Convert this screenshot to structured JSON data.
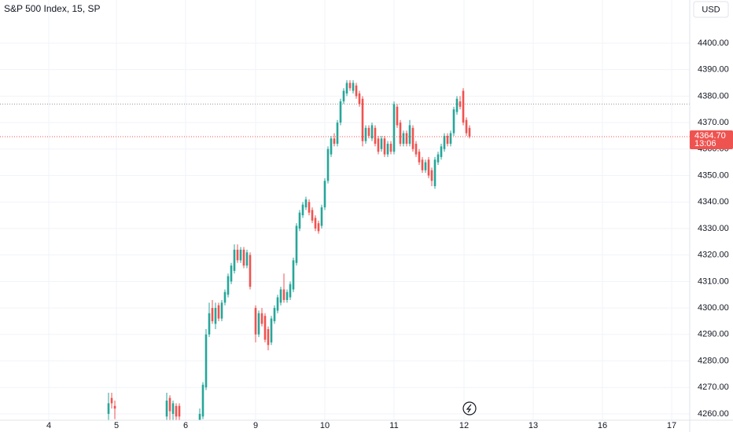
{
  "chart_data": {
    "type": "candlestick",
    "title": "S&P 500 Index, 15, SP",
    "currency": "USD",
    "up_color": "#26a69a",
    "down_color": "#ef5350",
    "x": [
      34.5,
      35.5,
      36.5,
      53,
      54,
      55,
      56,
      57,
      63.5,
      64.5,
      65.5,
      66.5,
      67.5,
      68.5,
      69.5,
      70.5,
      71.5,
      72.5,
      73.5,
      74.5,
      75.5,
      76.5,
      77.5,
      78.5,
      79.5,
      81.25,
      82.25,
      83.25,
      84.25,
      85.25,
      86.25,
      87.25,
      88.25,
      89.25,
      90.25,
      91.25,
      92.25,
      93.25,
      94.25,
      95.25,
      96.25,
      97.25,
      98.25,
      99.25,
      100.25,
      101.25,
      102.25,
      103.25,
      104.25,
      105.25,
      106.25,
      107.25,
      108.25,
      109.25,
      110.25,
      111.25,
      112.25,
      113.25,
      114.25,
      115.25,
      116.25,
      117.25,
      118.25,
      119.25,
      120.25,
      121.25,
      122.25,
      123.25,
      124.25,
      125.25,
      126.25,
      127.25,
      128.25,
      129.25,
      130.25,
      131.25,
      132.25,
      133.25,
      134.25,
      135.25,
      136.25,
      137.25,
      138.25,
      139.25,
      140.25,
      141.25,
      142.25,
      143.25,
      144.25,
      145.25,
      146.25,
      147.25,
      148.25,
      149.25
    ],
    "open": [
      4260,
      4266,
      4263,
      4259,
      4266,
      4260,
      4263,
      4263,
      4255,
      4259,
      4270,
      4290,
      4300,
      4294,
      4301,
      4296,
      4302,
      4305,
      4310,
      4314,
      4322,
      4318,
      4322,
      4316,
      4320,
      4300,
      4290,
      4298,
      4297,
      4292,
      4287,
      4295,
      4299,
      4302,
      4307,
      4303,
      4304,
      4307,
      4317,
      4330,
      4335,
      4338,
      4340,
      4337,
      4334,
      4332,
      4331,
      4338,
      4348,
      4358,
      4364,
      4362,
      4370,
      4378,
      4381,
      4385,
      4382,
      4384,
      4381,
      4379,
      4363,
      4368,
      4364,
      4368,
      4364,
      4360,
      4364,
      4358,
      4362,
      4359,
      4376,
      4370,
      4362,
      4366,
      4362,
      4368,
      4362,
      4359,
      4356,
      4352,
      4356,
      4352,
      4346,
      4355,
      4357,
      4360,
      4365,
      4362,
      4366,
      4374,
      4378,
      4382,
      4371,
      4368
    ],
    "high": [
      4268,
      4268,
      4265,
      4268,
      4267,
      4265,
      4264,
      4264,
      4262,
      4272,
      4292,
      4302,
      4303,
      4302,
      4302,
      4303,
      4307,
      4313,
      4317,
      4324,
      4324,
      4323,
      4323,
      4322,
      4321,
      4301,
      4299,
      4300,
      4298,
      4293,
      4297,
      4301,
      4305,
      4308,
      4313,
      4307,
      4310,
      4319,
      4332,
      4337,
      4340,
      4342,
      4341,
      4338,
      4335,
      4333,
      4339,
      4349,
      4361,
      4365,
      4366,
      4371,
      4379,
      4383,
      4386,
      4386,
      4386,
      4385,
      4382,
      4380,
      4369,
      4369,
      4370,
      4369,
      4365,
      4365,
      4365,
      4363,
      4363,
      4378,
      4377,
      4371,
      4367,
      4367,
      4371,
      4369,
      4363,
      4360,
      4357,
      4356,
      4357,
      4353,
      4357,
      4359,
      4362,
      4366,
      4366,
      4367,
      4376,
      4380,
      4380,
      4383,
      4372,
      4369
    ],
    "low": [
      4256,
      4262,
      4258,
      4256,
      4257,
      4256,
      4256,
      4256,
      4254,
      4258,
      4269,
      4289,
      4294,
      4292,
      4295,
      4295,
      4301,
      4304,
      4309,
      4313,
      4317,
      4317,
      4315,
      4315,
      4307,
      4287,
      4289,
      4293,
      4287,
      4284,
      4286,
      4294,
      4298,
      4301,
      4302,
      4302,
      4303,
      4306,
      4316,
      4329,
      4334,
      4337,
      4335,
      4332,
      4329,
      4328,
      4330,
      4337,
      4347,
      4357,
      4361,
      4361,
      4369,
      4377,
      4380,
      4382,
      4381,
      4379,
      4376,
      4361,
      4362,
      4364,
      4363,
      4361,
      4358,
      4359,
      4357,
      4357,
      4358,
      4358,
      4368,
      4361,
      4361,
      4361,
      4361,
      4359,
      4357,
      4354,
      4351,
      4351,
      4349,
      4346,
      4345,
      4354,
      4356,
      4359,
      4361,
      4361,
      4365,
      4373,
      4375,
      4369,
      4365,
      4364
    ],
    "close": [
      4264,
      4264,
      4262,
      4265,
      4261,
      4264,
      4259,
      4259,
      4260,
      4271,
      4290,
      4298,
      4295,
      4300,
      4296,
      4302,
      4306,
      4312,
      4316,
      4322,
      4318,
      4322,
      4316,
      4321,
      4308,
      4290,
      4298,
      4294,
      4288,
      4286,
      4296,
      4300,
      4304,
      4307,
      4303,
      4306,
      4309,
      4318,
      4331,
      4336,
      4339,
      4341,
      4336,
      4333,
      4330,
      4329,
      4338,
      4348,
      4360,
      4364,
      4362,
      4370,
      4378,
      4382,
      4385,
      4383,
      4385,
      4380,
      4377,
      4363,
      4368,
      4365,
      4369,
      4362,
      4359,
      4364,
      4358,
      4362,
      4359,
      4377,
      4369,
      4362,
      4366,
      4362,
      4369,
      4360,
      4358,
      4355,
      4352,
      4355,
      4350,
      4348,
      4356,
      4358,
      4361,
      4365,
      4362,
      4366,
      4375,
      4379,
      4376,
      4370,
      4366,
      4364.7
    ],
    "last_price": {
      "value": 4364.7,
      "label": "4364.70"
    },
    "countdown": "13:06",
    "ref_line": 4377,
    "xlim": [
      0,
      219.25
    ],
    "ylim": [
      4257.6,
      4416.3
    ],
    "xticks": [
      {
        "value": 15.5,
        "label": "4"
      },
      {
        "value": 37,
        "label": "5"
      },
      {
        "value": 59,
        "label": "6"
      },
      {
        "value": 81.25,
        "label": "9"
      },
      {
        "value": 103.25,
        "label": "10"
      },
      {
        "value": 125.25,
        "label": "11"
      },
      {
        "value": 147.5,
        "label": "12"
      },
      {
        "value": 169.5,
        "label": "13"
      },
      {
        "value": 191.5,
        "label": "16"
      },
      {
        "value": 213.5,
        "label": "17"
      }
    ],
    "yticks": [
      {
        "value": 4260,
        "label": "4260.00"
      },
      {
        "value": 4270,
        "label": "4270.00"
      },
      {
        "value": 4280,
        "label": "4280.00"
      },
      {
        "value": 4290,
        "label": "4290.00"
      },
      {
        "value": 4300,
        "label": "4300.00"
      },
      {
        "value": 4310,
        "label": "4310.00"
      },
      {
        "value": 4320,
        "label": "4320.00"
      },
      {
        "value": 4330,
        "label": "4330.00"
      },
      {
        "value": 4340,
        "label": "4340.00"
      },
      {
        "value": 4350,
        "label": "4350.00"
      },
      {
        "value": 4360,
        "label": "4360.00"
      },
      {
        "value": 4370,
        "label": "4370.00"
      },
      {
        "value": 4380,
        "label": "4380.00"
      },
      {
        "value": 4390,
        "label": "4390.00"
      },
      {
        "value": 4400,
        "label": "4400.00"
      }
    ],
    "grid": true
  }
}
